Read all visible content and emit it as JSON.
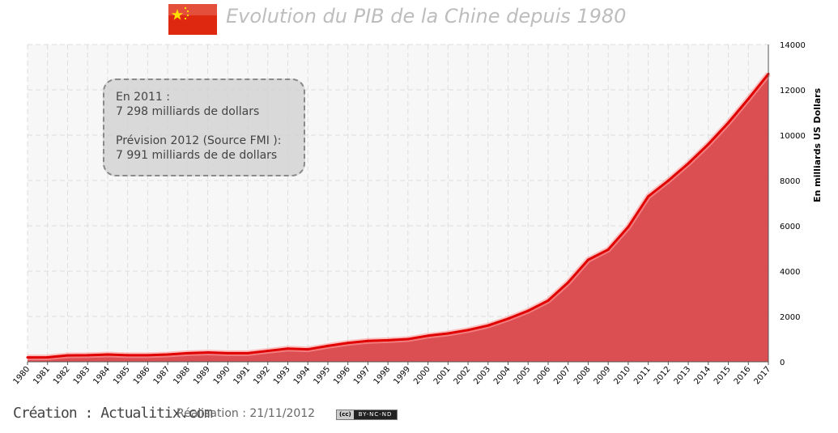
{
  "header": {
    "title": "Evolution du PIB de la Chine depuis 1980"
  },
  "annotation": {
    "line1": "En 2011 :",
    "line2": "7 298 milliards  de dollars",
    "line3": "Prévision 2012 (Source FMI ):",
    "line4": "7 991 milliards  de de dollars"
  },
  "footer": {
    "creation": "Création : Actualitix.com",
    "date": "Réalisation : 21/11/2012",
    "license_cc": "(cc)",
    "license_text": "BY-NC-ND"
  },
  "colors": {
    "fill": "#d9464a",
    "line": "#e00000",
    "flag_red": "#de2910",
    "flag_star": "#ffde00"
  },
  "chart_data": {
    "type": "area",
    "title": "Evolution du PIB de la Chine depuis 1980",
    "ylabel": "En milliards US Dollars",
    "xlabel": "",
    "x": [
      "1980",
      "1981",
      "1982",
      "1983",
      "1984",
      "1985",
      "1986",
      "1987",
      "1988",
      "1989",
      "1990",
      "1991",
      "1992",
      "1993",
      "1994",
      "1995",
      "1996",
      "1997",
      "1998",
      "1999",
      "2000",
      "2001",
      "2002",
      "2003",
      "2004",
      "2005",
      "2006",
      "2007",
      "2008",
      "2009",
      "2010",
      "2011",
      "2012",
      "2013",
      "2014",
      "2015",
      "2016",
      "2017"
    ],
    "values": [
      190,
      195,
      280,
      290,
      320,
      290,
      290,
      320,
      380,
      410,
      380,
      380,
      480,
      580,
      550,
      700,
      830,
      920,
      950,
      1000,
      1150,
      1250,
      1400,
      1600,
      1900,
      2250,
      2700,
      3500,
      4500,
      4950,
      5950,
      7298,
      7991,
      8750,
      9600,
      10550,
      11600,
      12700
    ],
    "ylim": [
      0,
      14000
    ],
    "yticks": [
      0,
      2000,
      4000,
      6000,
      8000,
      10000,
      12000,
      14000
    ],
    "y_axis_side": "right",
    "grid": true
  }
}
